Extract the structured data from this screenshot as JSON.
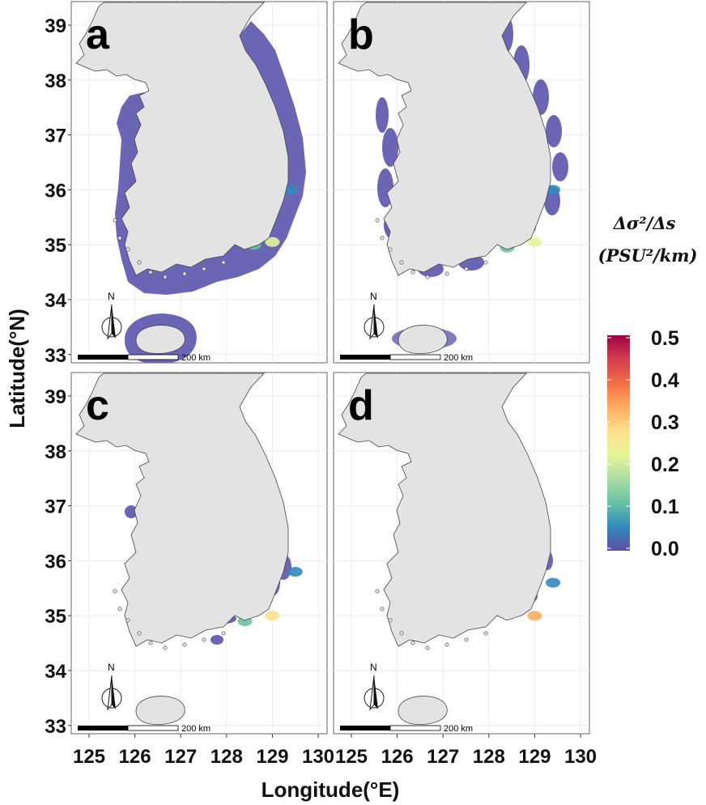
{
  "panels": [
    {
      "label": "a",
      "buffer": "full"
    },
    {
      "label": "b",
      "buffer": "patchy"
    },
    {
      "label": "c",
      "buffer": "sparse"
    },
    {
      "label": "d",
      "buffer": "minimal"
    }
  ],
  "axes": {
    "x_title": "Longitude(°E)",
    "y_title": "Latitude(°N)",
    "x_ticks": [
      "125",
      "126",
      "127",
      "128",
      "129",
      "130"
    ],
    "y_ticks": [
      "39",
      "38",
      "37",
      "36",
      "35",
      "34",
      "33"
    ],
    "x_values": [
      125,
      126,
      127,
      128,
      129,
      130
    ],
    "y_values": [
      39,
      38,
      37,
      36,
      35,
      34,
      33
    ]
  },
  "scale_bar": {
    "label": "200 km"
  },
  "north_arrow": {
    "label": "N",
    "icon": "north-arrow-icon"
  },
  "legend": {
    "title_line1": "Δσ²/Δs",
    "title_line2": "(PSU²/km)",
    "ticks": [
      "0.5",
      "0.4",
      "0.3",
      "0.2",
      "0.1",
      "0.0"
    ],
    "values": [
      0.5,
      0.4,
      0.3,
      0.2,
      0.1,
      0.0
    ],
    "colors": [
      "#5e4fa2",
      "#3288bd",
      "#66c2a5",
      "#abdda4",
      "#e6f598",
      "#fee08b",
      "#fdae61",
      "#f46d43",
      "#d53e4f",
      "#9e0142"
    ]
  },
  "colors": {
    "land": "#e3e3e3",
    "coast": "#444444",
    "buffer": "#6b65b5",
    "grid": "#ececec"
  }
}
